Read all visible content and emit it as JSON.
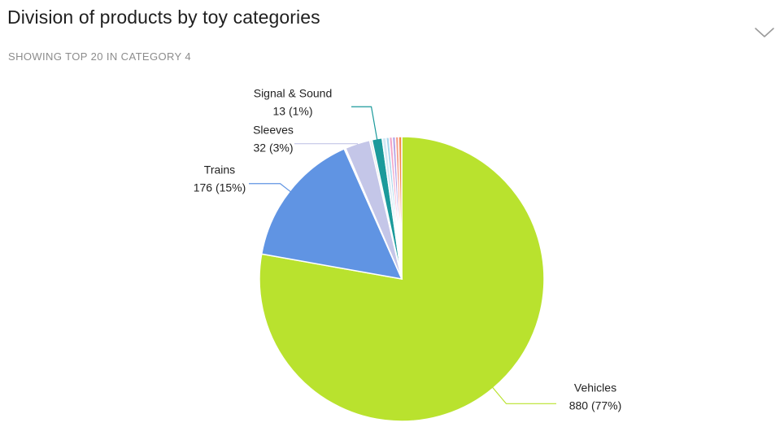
{
  "header": {
    "title": "Division of products by toy categories",
    "subtitle": "SHOWING TOP 20 IN CATEGORY 4",
    "collapse_icon": "chevron-down-icon"
  },
  "chart_data": {
    "type": "pie",
    "title": "Division of products by toy categories",
    "subtitle": "SHOWING TOP 20 IN CATEGORY 4",
    "start_angle_deg": 0,
    "direction": "clockwise",
    "slices": [
      {
        "label": "Vehicles",
        "value": 880,
        "percent": "77%",
        "color": "#b9e22e",
        "show_label": true,
        "display": "880 (77%)"
      },
      {
        "label": "Trains",
        "value": 176,
        "percent": "15%",
        "color": "#6094e3",
        "show_label": true,
        "display": "176 (15%)"
      },
      {
        "label": "",
        "value": 2,
        "percent": "",
        "color": "#ffffff",
        "show_label": false,
        "display": ""
      },
      {
        "label": "Sleeves",
        "value": 32,
        "percent": "3%",
        "color": "#c4c6e8",
        "show_label": true,
        "display": "32 (3%)"
      },
      {
        "label": "",
        "value": 3,
        "percent": "",
        "color": "#e6e8e9",
        "show_label": false,
        "display": ""
      },
      {
        "label": "Signal & Sound",
        "value": 13,
        "percent": "1%",
        "color": "#1b9a9b",
        "show_label": true,
        "display": "13 (1%)"
      },
      {
        "label": "",
        "value": 5,
        "percent": "",
        "color": "#d4e8f4",
        "show_label": false,
        "display": ""
      },
      {
        "label": "",
        "value": 4,
        "percent": "",
        "color": "#a8d6ec",
        "show_label": false,
        "display": ""
      },
      {
        "label": "",
        "value": 4,
        "percent": "",
        "color": "#f3a6c8",
        "show_label": false,
        "display": ""
      },
      {
        "label": "",
        "value": 4,
        "percent": "",
        "color": "#b7a6e6",
        "show_label": false,
        "display": ""
      },
      {
        "label": "",
        "value": 4,
        "percent": "",
        "color": "#f7a08c",
        "show_label": false,
        "display": ""
      },
      {
        "label": "",
        "value": 4,
        "percent": "",
        "color": "#f2884a",
        "show_label": false,
        "display": ""
      }
    ]
  }
}
